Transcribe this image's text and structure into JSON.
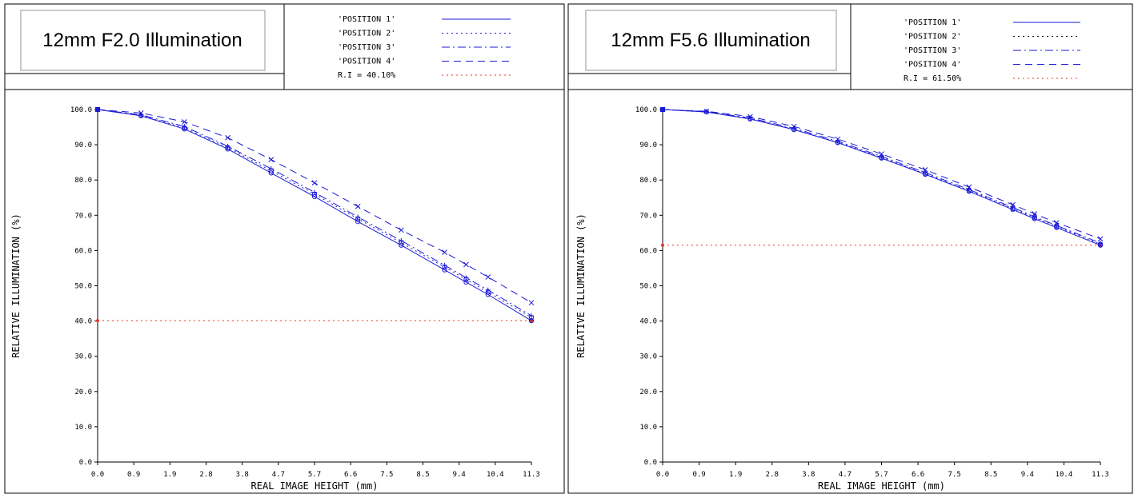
{
  "panels": [
    {
      "title": "12mm F2.0 Illumination",
      "legend": [
        {
          "label": "'POSITION 1'",
          "dash": "",
          "color": "#1a1ad6"
        },
        {
          "label": "'POSITION 2'",
          "dash": "2,4",
          "color": "#1a1ad6"
        },
        {
          "label": "'POSITION 3'",
          "dash": "10,4,2,4",
          "color": "#1a1ad6"
        },
        {
          "label": "'POSITION 4'",
          "dash": "9,6",
          "color": "#1a1ad6"
        },
        {
          "label": "R.I = 40.10%",
          "dash": "2,4",
          "color": "#e8332a"
        }
      ]
    },
    {
      "title": "12mm F5.6 Illumination",
      "legend": [
        {
          "label": "'POSITION 1'",
          "dash": "",
          "color": "#1a1ad6"
        },
        {
          "label": "'POSITION 2'",
          "dash": "2,4",
          "color": "#111111"
        },
        {
          "label": "'POSITION 3'",
          "dash": "10,4,2,4",
          "color": "#1a1ad6"
        },
        {
          "label": "'POSITION 4'",
          "dash": "9,6",
          "color": "#1a1ad6"
        },
        {
          "label": "R.I = 61.50%",
          "dash": "2,4",
          "color": "#e8332a"
        }
      ]
    }
  ],
  "chart_data": [
    {
      "type": "line",
      "xlabel": "REAL IMAGE HEIGHT (mm)",
      "ylabel": "RELATIVE ILLUMINATION (%)",
      "xlim": [
        0,
        11.3
      ],
      "ylim": [
        0,
        100
      ],
      "xticks": [
        "0.0",
        "0.9",
        "1.9",
        "2.8",
        "3.8",
        "4.7",
        "5.7",
        "6.6",
        "7.5",
        "8.5",
        "9.4",
        "10.4",
        "11.3"
      ],
      "yticks": [
        "0.0",
        "10.0",
        "20.0",
        "30.0",
        "40.0",
        "50.0",
        "60.0",
        "70.0",
        "80.0",
        "90.0",
        "100.0"
      ],
      "x": [
        0,
        1.13,
        2.26,
        3.39,
        4.52,
        5.65,
        6.78,
        7.91,
        9.04,
        9.6,
        10.17,
        11.3
      ],
      "series": [
        {
          "name": "POSITION 1",
          "marker": "o",
          "values": [
            100,
            98.2,
            94.5,
            88.8,
            82.0,
            75.3,
            68.2,
            61.5,
            54.5,
            51.0,
            47.5,
            40.1
          ]
        },
        {
          "name": "POSITION 2",
          "marker": "o",
          "values": [
            100,
            98.3,
            94.8,
            89.2,
            82.6,
            76.0,
            69.0,
            62.2,
            55.3,
            51.8,
            48.2,
            41.0
          ]
        },
        {
          "name": "POSITION 3",
          "marker": "+",
          "values": [
            100,
            98.5,
            95.2,
            89.6,
            83.2,
            76.5,
            69.5,
            62.8,
            55.8,
            52.3,
            48.8,
            41.5
          ]
        },
        {
          "name": "POSITION 4",
          "marker": "x",
          "values": [
            100,
            99.0,
            96.5,
            92.0,
            85.8,
            79.2,
            72.5,
            65.8,
            59.5,
            56.0,
            52.5,
            45.2
          ]
        }
      ],
      "reference": {
        "name": "R.I",
        "value": 40.1
      }
    },
    {
      "type": "line",
      "xlabel": "REAL IMAGE HEIGHT (mm)",
      "ylabel": "RELATIVE ILLUMINATION (%)",
      "xlim": [
        0,
        11.3
      ],
      "ylim": [
        0,
        100
      ],
      "xticks": [
        "0.0",
        "0.9",
        "1.9",
        "2.8",
        "3.8",
        "4.7",
        "5.7",
        "6.6",
        "7.5",
        "8.5",
        "9.4",
        "10.4",
        "11.3"
      ],
      "yticks": [
        "0.0",
        "10.0",
        "20.0",
        "30.0",
        "40.0",
        "50.0",
        "60.0",
        "70.0",
        "80.0",
        "90.0",
        "100.0"
      ],
      "x": [
        0,
        1.13,
        2.26,
        3.39,
        4.52,
        5.65,
        6.78,
        7.91,
        9.04,
        9.6,
        10.17,
        11.3
      ],
      "series": [
        {
          "name": "POSITION 1",
          "marker": "o",
          "values": [
            100,
            99.3,
            97.3,
            94.3,
            90.6,
            86.2,
            81.6,
            76.8,
            71.6,
            69.0,
            66.5,
            61.5
          ]
        },
        {
          "name": "POSITION 2",
          "marker": "o",
          "values": [
            100,
            99.3,
            97.4,
            94.4,
            90.7,
            86.4,
            81.8,
            77.0,
            71.9,
            69.3,
            66.8,
            61.8
          ]
        },
        {
          "name": "POSITION 3",
          "marker": "+",
          "values": [
            100,
            99.4,
            97.6,
            94.7,
            91.0,
            86.7,
            82.1,
            77.3,
            72.2,
            69.6,
            67.1,
            62.1
          ]
        },
        {
          "name": "POSITION 4",
          "marker": "x",
          "values": [
            100,
            99.5,
            98.0,
            95.2,
            91.6,
            87.4,
            82.9,
            78.0,
            73.0,
            70.4,
            67.9,
            63.3
          ]
        }
      ],
      "reference": {
        "name": "R.I",
        "value": 61.5
      }
    }
  ]
}
